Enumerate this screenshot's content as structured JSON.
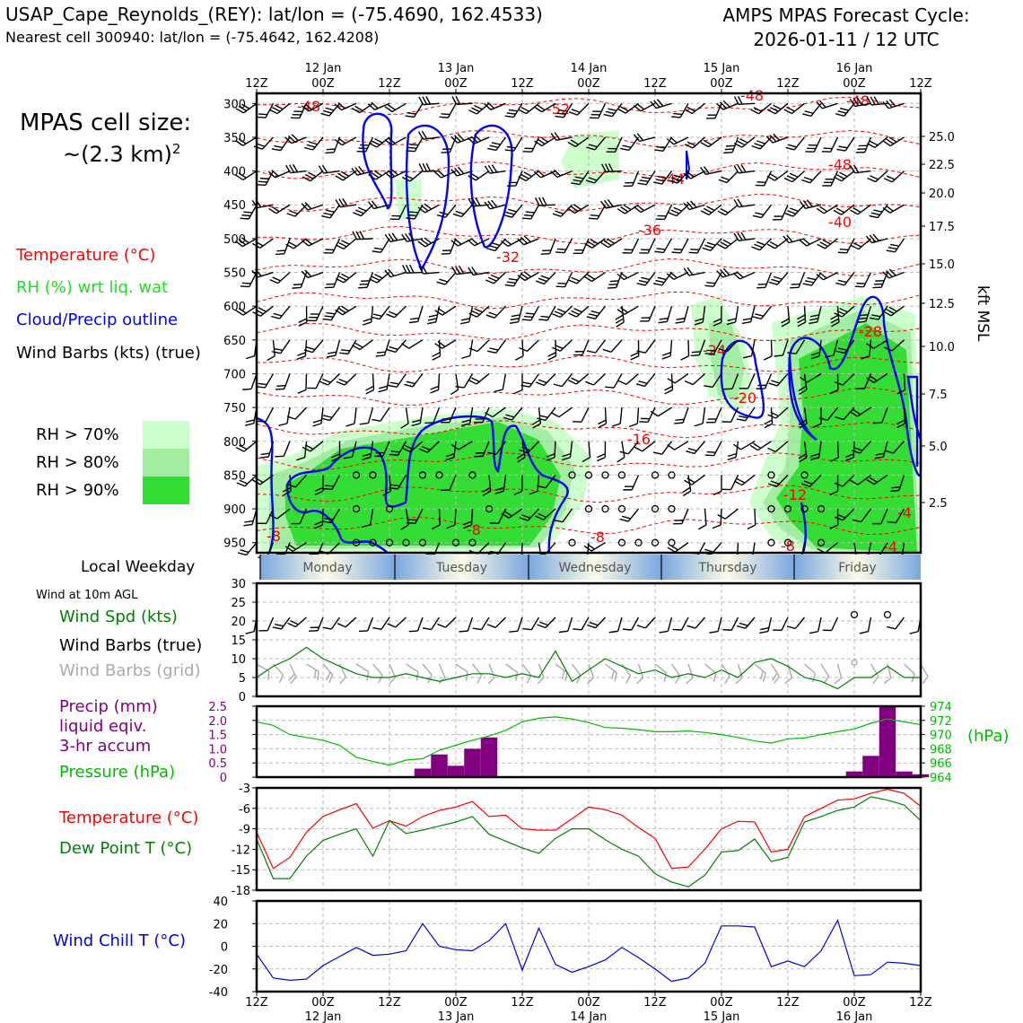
{
  "header": {
    "title": "USAP_Cape_Reynolds_(REY): lat/lon = (-75.4690, 162.4533)",
    "subtitle": "Nearest cell 300940: lat/lon = (-75.4642, 162.4208)",
    "cycle_line1": "AMPS MPAS Forecast Cycle:",
    "cycle_line2": "2026-01-11 / 12 UTC"
  },
  "cell_size": {
    "label": "MPAS cell size:",
    "value": "~(2.3 km)",
    "exponent": "2"
  },
  "legend": {
    "temperature": "Temperature (°C)",
    "rh": "RH (%) wrt liq. wat",
    "cloud": "Cloud/Precip outline",
    "wind": "Wind Barbs (kts) (true)",
    "rh70": "RH > 70%",
    "rh80": "RH > 80%",
    "rh90": "RH > 90%"
  },
  "colors": {
    "temperature": "#ff0000",
    "rh_text": "#22dd22",
    "cloud": "#0000ff",
    "rh70": "#ccffcc",
    "rh80": "#a0ee a0",
    "rh90": "#33dd33",
    "precip": "#800080",
    "pressure": "#00bb00",
    "dewpoint": "#008000",
    "windchill": "#0000dd"
  },
  "time_axis": {
    "top_labels": [
      "12Z",
      "00Z",
      "12Z",
      "00Z",
      "12Z",
      "00Z",
      "12Z",
      "00Z",
      "12Z",
      "00Z",
      "12Z"
    ],
    "date_labels": [
      "12 Jan",
      "13 Jan",
      "14 Jan",
      "15 Jan",
      "16 Jan"
    ],
    "bottom_labels": [
      "12Z",
      "00Z",
      "12Z",
      "00Z",
      "12Z",
      "00Z",
      "12Z",
      "00Z",
      "12Z",
      "00Z",
      "12Z"
    ]
  },
  "weekday_bar": {
    "label": "Local Weekday",
    "days": [
      "Monday",
      "Tuesday",
      "Wednesday",
      "Thursday",
      "Friday"
    ]
  },
  "panel_wind": {
    "subtitle": "Wind at 10m AGL",
    "spd_label": "Wind Spd (kts)",
    "barbs_true": "Wind Barbs (true)",
    "barbs_grid": "Wind Barbs (grid)",
    "yticks": [
      "30",
      "25",
      "20",
      "15",
      "10",
      "5",
      "0"
    ]
  },
  "panel_precip": {
    "label1": "Precip (mm)",
    "label2": "liquid eqiv.",
    "label3": "3-hr accum",
    "pressure_label": "Pressure (hPa)",
    "yticks_left": [
      "2.5",
      "2.0",
      "1.5",
      "1.0",
      "0.5",
      "0"
    ],
    "yticks_right": [
      "974",
      "972",
      "970",
      "968",
      "966",
      "964"
    ],
    "unit_right": "(hPa)"
  },
  "panel_temp": {
    "temp_label": "Temperature (°C)",
    "dew_label": "Dew Point T (°C)",
    "yticks": [
      "-3",
      "-6",
      "-9",
      "-12",
      "-15",
      "-18"
    ]
  },
  "panel_chill": {
    "label": "Wind Chill T (°C)",
    "yticks": [
      "40",
      "20",
      "0",
      "-20",
      "-40"
    ]
  },
  "cross_section": {
    "pressure_ticks": [
      "300",
      "350",
      "400",
      "450",
      "500",
      "550",
      "600",
      "650",
      "700",
      "750",
      "800",
      "850",
      "900",
      "950"
    ],
    "kft_ticks": [
      "25.0",
      "22.5",
      "20.0",
      "17.5",
      "15.0",
      "12.5",
      "10.0",
      "7.5",
      "5.0",
      "2.5"
    ],
    "kft_label": "kft MSL",
    "temp_contour_labels": [
      "-48",
      "-52",
      "-48",
      "-48",
      "-48",
      "-44",
      "-40",
      "-36",
      "-32",
      "-28",
      "-24",
      "-20",
      "-16",
      "-12",
      "-8",
      "-8",
      "-8",
      "-8",
      "-4",
      "-4"
    ]
  },
  "chart_data": [
    {
      "type": "line",
      "name": "wind_speed_10m",
      "x_hours": [
        0,
        3,
        6,
        9,
        12,
        15,
        18,
        21,
        24,
        27,
        30,
        33,
        36,
        39,
        42,
        45,
        48,
        51,
        54,
        57,
        60,
        63,
        66,
        69,
        72,
        75,
        78,
        81,
        84,
        87,
        90,
        93,
        96,
        99,
        102,
        105,
        108,
        111,
        114,
        117,
        120
      ],
      "series": [
        {
          "name": "Wind Spd (kts)",
          "values": [
            5,
            8,
            10,
            13,
            10,
            8,
            6,
            5,
            5,
            6,
            5,
            4,
            5,
            6,
            6,
            5,
            6,
            5,
            12,
            4,
            7,
            10,
            8,
            6,
            7,
            5,
            6,
            5,
            7,
            5,
            9,
            10,
            8,
            5,
            4,
            2,
            5,
            5,
            8,
            5,
            5
          ]
        }
      ],
      "ylim": [
        0,
        30
      ]
    },
    {
      "type": "bar",
      "name": "precip_3hr",
      "x_hours": [
        30,
        33,
        36,
        39,
        42,
        108,
        111,
        114,
        117,
        120
      ],
      "values": [
        0.3,
        0.8,
        0.4,
        1.0,
        1.4,
        0.2,
        0.75,
        2.5,
        0.2,
        0.1
      ],
      "ylim": [
        0,
        2.5
      ]
    },
    {
      "type": "line",
      "name": "pressure",
      "x_hours": [
        0,
        3,
        6,
        9,
        12,
        15,
        18,
        21,
        24,
        27,
        30,
        33,
        36,
        39,
        42,
        45,
        48,
        51,
        54,
        57,
        60,
        63,
        66,
        69,
        72,
        75,
        78,
        81,
        84,
        87,
        90,
        93,
        96,
        99,
        102,
        105,
        108,
        111,
        114,
        117,
        120
      ],
      "series": [
        {
          "name": "Pressure (hPa)",
          "values": [
            971.8,
            971.3,
            970.0,
            969.6,
            969.2,
            968.5,
            966.8,
            966.2,
            965.7,
            966.4,
            966.6,
            967.8,
            968.5,
            969.2,
            969.8,
            970.6,
            971.8,
            972.3,
            972.5,
            972.2,
            971.7,
            971.0,
            970.9,
            970.7,
            970.4,
            970.4,
            970.5,
            970.3,
            970.0,
            969.6,
            969.1,
            968.8,
            969.4,
            969.5,
            970.0,
            970.4,
            970.8,
            971.6,
            972.2,
            971.8,
            971.4
          ]
        }
      ],
      "ylim": [
        964,
        974
      ]
    },
    {
      "type": "line",
      "name": "temp_dewpoint",
      "x_hours": [
        0,
        3,
        6,
        9,
        12,
        15,
        18,
        21,
        24,
        27,
        30,
        33,
        36,
        39,
        42,
        45,
        48,
        51,
        54,
        57,
        60,
        63,
        66,
        69,
        72,
        75,
        78,
        81,
        84,
        87,
        90,
        93,
        96,
        99,
        102,
        105,
        108,
        111,
        114,
        117,
        120
      ],
      "series": [
        {
          "name": "Temperature (°C)",
          "values": [
            -9.5,
            -14.8,
            -13.2,
            -9.5,
            -7.2,
            -6.2,
            -5.3,
            -8.9,
            -7.8,
            -8.6,
            -7.2,
            -6.3,
            -5.8,
            -5.0,
            -7.2,
            -7.0,
            -9.0,
            -9.2,
            -9.2,
            -7.5,
            -5.8,
            -6.2,
            -7.0,
            -8.8,
            -10.4,
            -14.8,
            -14.6,
            -12.0,
            -9.0,
            -7.9,
            -8.0,
            -12.4,
            -12.0,
            -7.2,
            -6.0,
            -4.8,
            -4.6,
            -3.8,
            -3.2,
            -3.8,
            -5.7
          ]
        },
        {
          "name": "Dew Point T (°C)",
          "values": [
            -10.5,
            -16.3,
            -16.3,
            -13.0,
            -10.7,
            -9.8,
            -9.0,
            -13.0,
            -7.8,
            -9.7,
            -9.2,
            -8.6,
            -8.0,
            -7.2,
            -9.8,
            -10.8,
            -11.8,
            -12.6,
            -10.4,
            -9.0,
            -9.0,
            -10.6,
            -12.0,
            -13.0,
            -15.6,
            -16.8,
            -17.5,
            -15.8,
            -12.4,
            -12.2,
            -10.5,
            -13.8,
            -13.2,
            -8.0,
            -7.2,
            -6.3,
            -5.8,
            -4.3,
            -4.8,
            -5.5,
            -7.8
          ]
        }
      ],
      "ylim": [
        -18,
        -3
      ]
    },
    {
      "type": "line",
      "name": "wind_chill",
      "x_hours": [
        0,
        3,
        6,
        9,
        12,
        15,
        18,
        21,
        24,
        27,
        30,
        33,
        36,
        39,
        42,
        45,
        48,
        51,
        54,
        57,
        60,
        63,
        66,
        69,
        72,
        75,
        78,
        81,
        84,
        87,
        90,
        93,
        96,
        99,
        102,
        105,
        108,
        111,
        114,
        117,
        120
      ],
      "series": [
        {
          "name": "Wind Chill T (°C)",
          "values": [
            -7,
            -28,
            -30,
            -29,
            -17,
            -9,
            -1,
            -8,
            -7,
            -4,
            20,
            0,
            -3,
            -4,
            5,
            20,
            -21,
            16,
            -16,
            -23,
            -18,
            -12,
            -1,
            -10,
            -20,
            -31,
            -28,
            -15,
            18,
            18,
            17,
            -18,
            -13,
            -18,
            -4,
            23,
            -26,
            -25,
            -14,
            -15,
            -17
          ]
        }
      ],
      "ylim": [
        -40,
        40
      ]
    }
  ]
}
